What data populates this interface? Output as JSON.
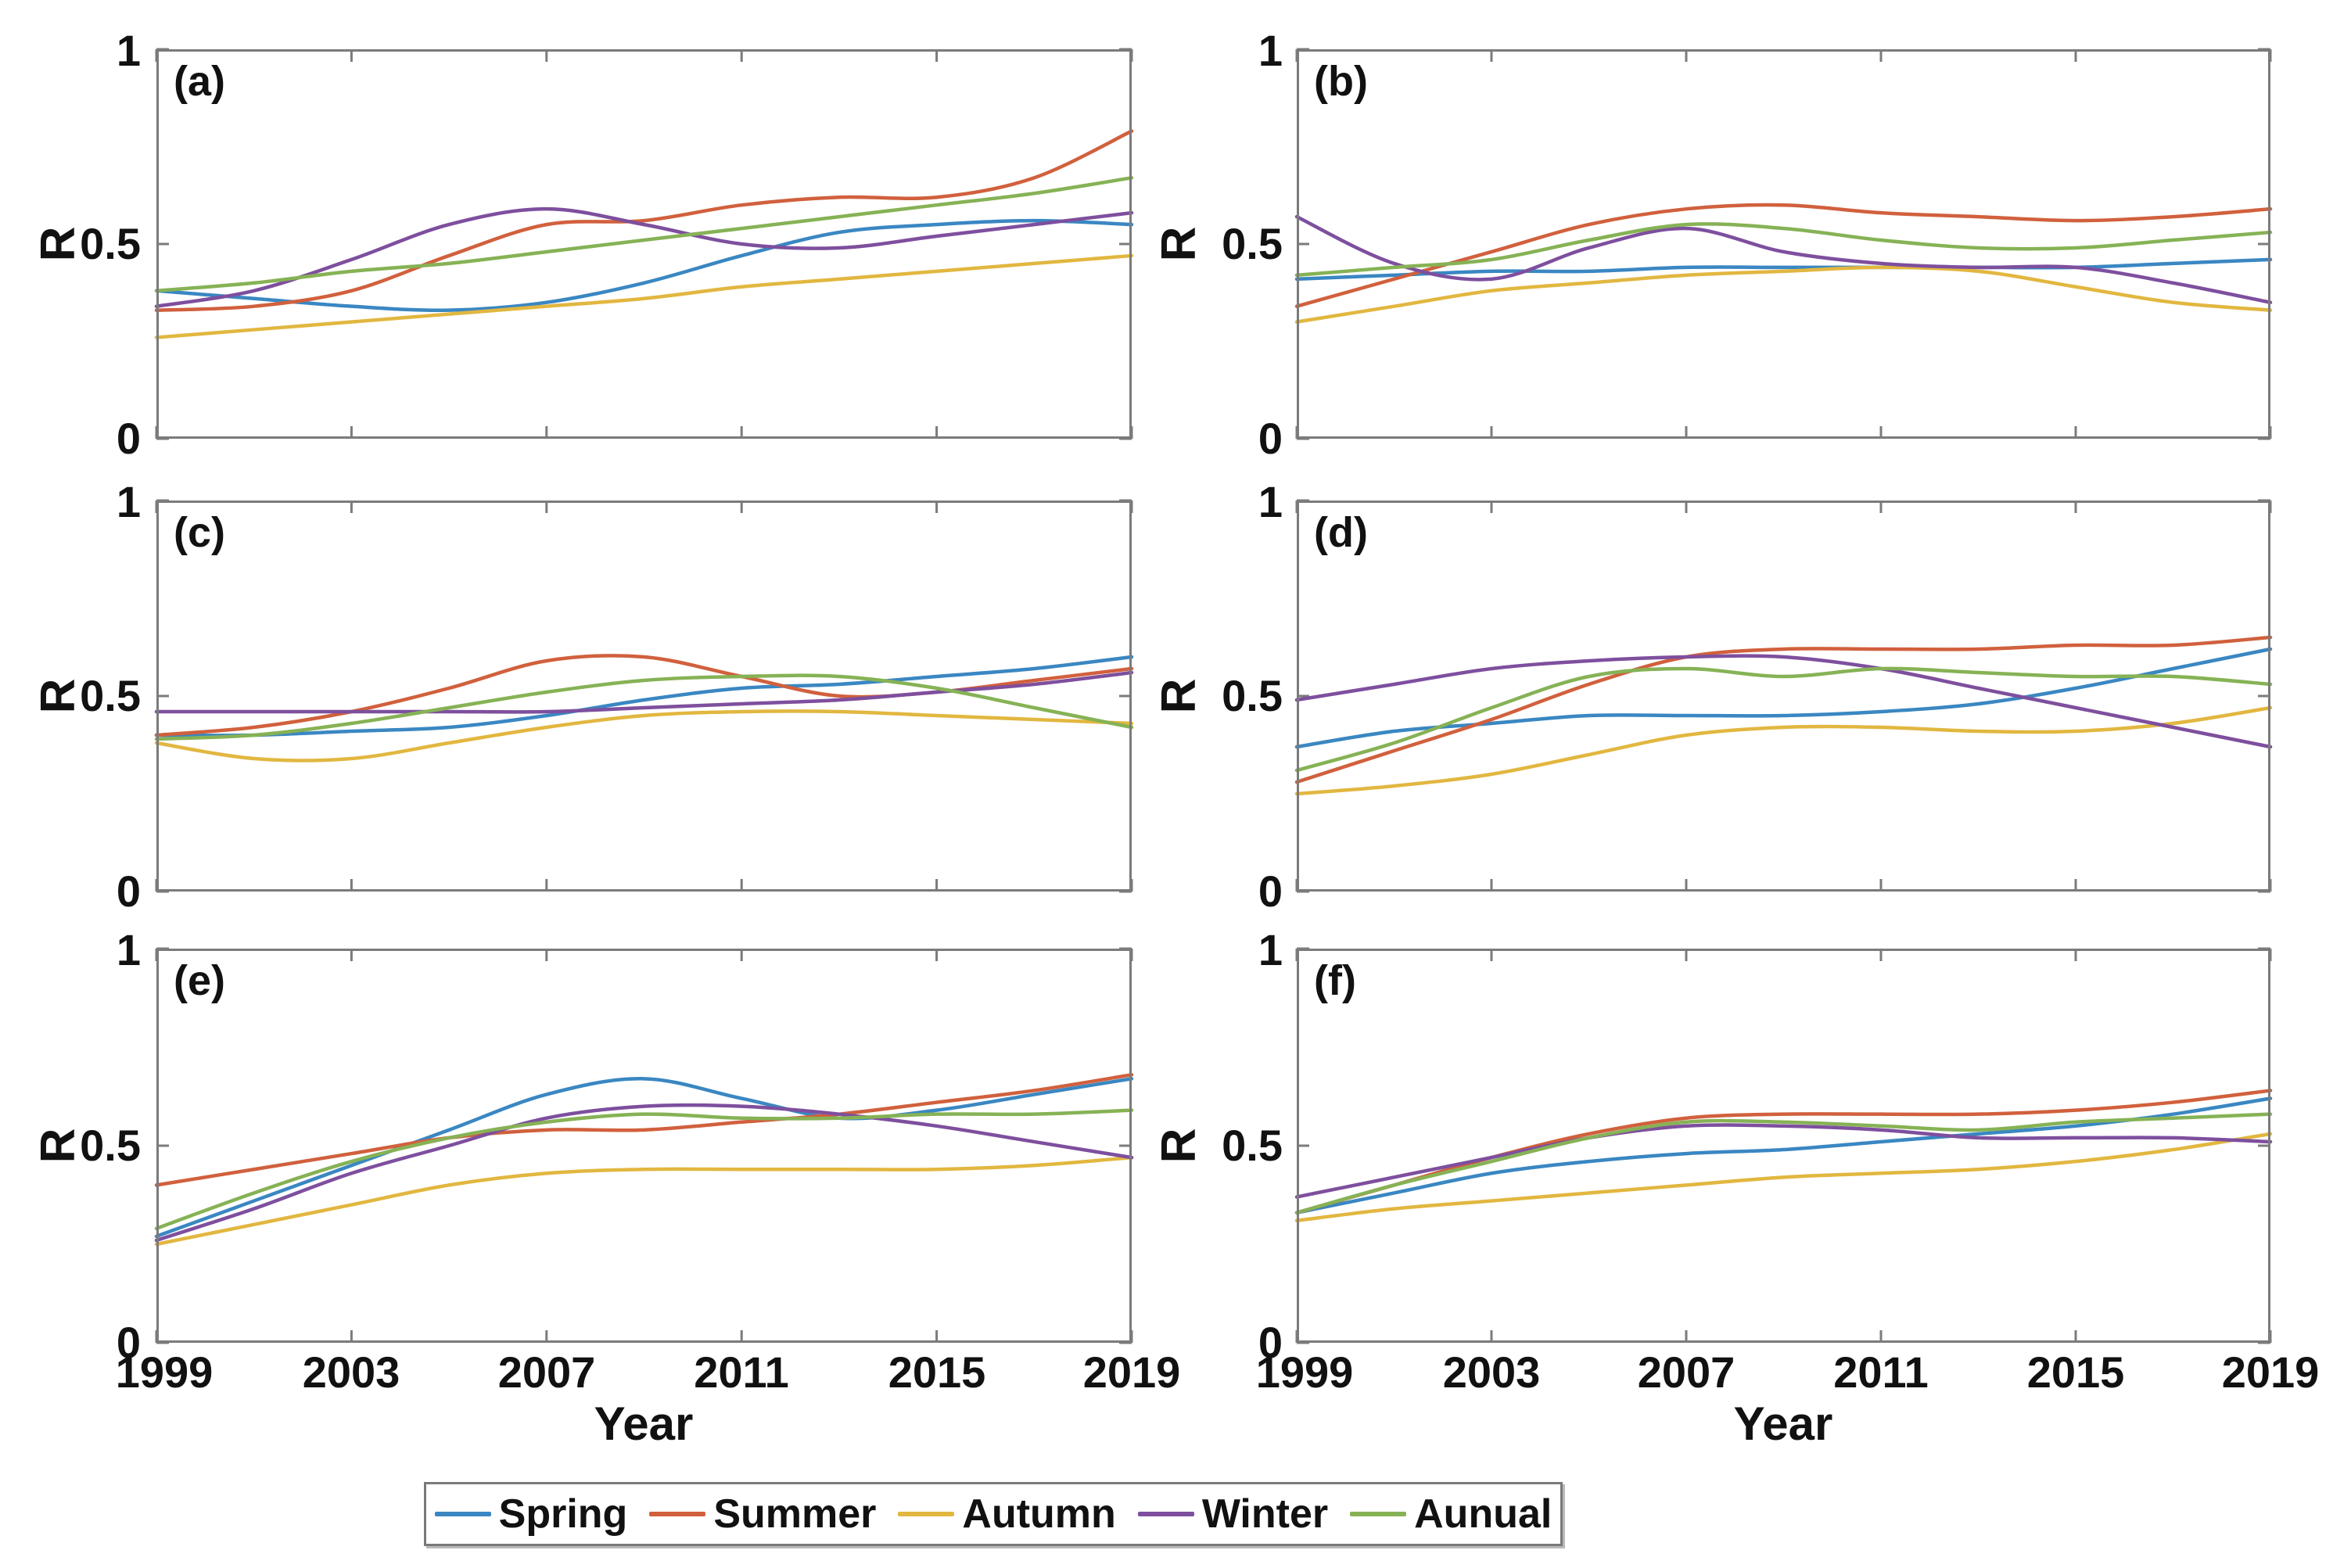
{
  "figure": {
    "ylabel": "R",
    "xlabel": "Year",
    "axes": {
      "x_ticks": [
        "1999",
        "2003",
        "2007",
        "2011",
        "2015",
        "2019"
      ],
      "y_ticks": [
        "1",
        "0.5",
        "0"
      ],
      "xlim": [
        1999,
        2019
      ],
      "ylim": [
        0,
        1
      ],
      "grid": "off",
      "box": "on",
      "axis_color": "#7b7b7b"
    }
  },
  "legend": {
    "position": "bottom-center",
    "items": [
      {
        "label": "Spring",
        "color": "#3a87c2"
      },
      {
        "label": "Summer",
        "color": "#d1603d"
      },
      {
        "label": "Autumn",
        "color": "#e2b740"
      },
      {
        "label": "Winter",
        "color": "#7e4f9e"
      },
      {
        "label": "Aunual",
        "color": "#86b255"
      }
    ]
  },
  "chart_data": [
    {
      "type": "line",
      "label": "(a)",
      "x": [
        1999,
        2001,
        2003,
        2005,
        2007,
        2009,
        2011,
        2013,
        2015,
        2017,
        2019
      ],
      "series": [
        {
          "name": "Spring",
          "color": "#3a87c2",
          "values": [
            0.38,
            0.36,
            0.34,
            0.33,
            0.35,
            0.4,
            0.47,
            0.53,
            0.55,
            0.56,
            0.55
          ]
        },
        {
          "name": "Summer",
          "color": "#d1603d",
          "values": [
            0.33,
            0.34,
            0.38,
            0.47,
            0.55,
            0.56,
            0.6,
            0.62,
            0.62,
            0.67,
            0.79
          ]
        },
        {
          "name": "Autumn",
          "color": "#e2b740",
          "values": [
            0.26,
            0.28,
            0.3,
            0.32,
            0.34,
            0.36,
            0.39,
            0.41,
            0.43,
            0.45,
            0.47
          ]
        },
        {
          "name": "Winter",
          "color": "#7e4f9e",
          "values": [
            0.34,
            0.38,
            0.46,
            0.55,
            0.59,
            0.55,
            0.5,
            0.49,
            0.52,
            0.55,
            0.58
          ]
        },
        {
          "name": "Aunual",
          "color": "#86b255",
          "values": [
            0.38,
            0.4,
            0.43,
            0.45,
            0.48,
            0.51,
            0.54,
            0.57,
            0.6,
            0.63,
            0.67
          ]
        }
      ]
    },
    {
      "type": "line",
      "label": "(b)",
      "x": [
        1999,
        2001,
        2003,
        2005,
        2007,
        2009,
        2011,
        2013,
        2015,
        2017,
        2019
      ],
      "series": [
        {
          "name": "Spring",
          "color": "#3a87c2",
          "values": [
            0.41,
            0.42,
            0.43,
            0.43,
            0.44,
            0.44,
            0.44,
            0.44,
            0.44,
            0.45,
            0.46
          ]
        },
        {
          "name": "Summer",
          "color": "#d1603d",
          "values": [
            0.34,
            0.41,
            0.48,
            0.55,
            0.59,
            0.6,
            0.58,
            0.57,
            0.56,
            0.57,
            0.59
          ]
        },
        {
          "name": "Autumn",
          "color": "#e2b740",
          "values": [
            0.3,
            0.34,
            0.38,
            0.4,
            0.42,
            0.43,
            0.44,
            0.43,
            0.39,
            0.35,
            0.33
          ]
        },
        {
          "name": "Winter",
          "color": "#7e4f9e",
          "values": [
            0.57,
            0.45,
            0.41,
            0.49,
            0.54,
            0.48,
            0.45,
            0.44,
            0.44,
            0.4,
            0.35
          ]
        },
        {
          "name": "Aunual",
          "color": "#86b255",
          "values": [
            0.42,
            0.44,
            0.46,
            0.51,
            0.55,
            0.54,
            0.51,
            0.49,
            0.49,
            0.51,
            0.53
          ]
        }
      ]
    },
    {
      "type": "line",
      "label": "(c)",
      "x": [
        1999,
        2001,
        2003,
        2005,
        2007,
        2009,
        2011,
        2013,
        2015,
        2017,
        2019
      ],
      "series": [
        {
          "name": "Spring",
          "color": "#3a87c2",
          "values": [
            0.4,
            0.4,
            0.41,
            0.42,
            0.45,
            0.49,
            0.52,
            0.53,
            0.55,
            0.57,
            0.6
          ]
        },
        {
          "name": "Summer",
          "color": "#d1603d",
          "values": [
            0.4,
            0.42,
            0.46,
            0.52,
            0.59,
            0.6,
            0.55,
            0.5,
            0.51,
            0.54,
            0.57
          ]
        },
        {
          "name": "Autumn",
          "color": "#e2b740",
          "values": [
            0.38,
            0.34,
            0.34,
            0.38,
            0.42,
            0.45,
            0.46,
            0.46,
            0.45,
            0.44,
            0.43
          ]
        },
        {
          "name": "Winter",
          "color": "#7e4f9e",
          "values": [
            0.46,
            0.46,
            0.46,
            0.46,
            0.46,
            0.47,
            0.48,
            0.49,
            0.51,
            0.53,
            0.56
          ]
        },
        {
          "name": "Aunual",
          "color": "#86b255",
          "values": [
            0.39,
            0.4,
            0.43,
            0.47,
            0.51,
            0.54,
            0.55,
            0.55,
            0.52,
            0.47,
            0.42
          ]
        }
      ]
    },
    {
      "type": "line",
      "label": "(d)",
      "x": [
        1999,
        2001,
        2003,
        2005,
        2007,
        2009,
        2011,
        2013,
        2015,
        2017,
        2019
      ],
      "series": [
        {
          "name": "Spring",
          "color": "#3a87c2",
          "values": [
            0.37,
            0.41,
            0.43,
            0.45,
            0.45,
            0.45,
            0.46,
            0.48,
            0.52,
            0.57,
            0.62
          ]
        },
        {
          "name": "Summer",
          "color": "#d1603d",
          "values": [
            0.28,
            0.36,
            0.44,
            0.53,
            0.6,
            0.62,
            0.62,
            0.62,
            0.63,
            0.63,
            0.65
          ]
        },
        {
          "name": "Autumn",
          "color": "#e2b740",
          "values": [
            0.25,
            0.27,
            0.3,
            0.35,
            0.4,
            0.42,
            0.42,
            0.41,
            0.41,
            0.43,
            0.47
          ]
        },
        {
          "name": "Winter",
          "color": "#7e4f9e",
          "values": [
            0.49,
            0.53,
            0.57,
            0.59,
            0.6,
            0.6,
            0.57,
            0.52,
            0.47,
            0.42,
            0.37
          ]
        },
        {
          "name": "Aunual",
          "color": "#86b255",
          "values": [
            0.31,
            0.38,
            0.47,
            0.55,
            0.57,
            0.55,
            0.57,
            0.56,
            0.55,
            0.55,
            0.53
          ]
        }
      ]
    },
    {
      "type": "line",
      "label": "(e)",
      "x": [
        1999,
        2001,
        2003,
        2005,
        2007,
        2009,
        2011,
        2013,
        2015,
        2017,
        2019
      ],
      "series": [
        {
          "name": "Spring",
          "color": "#3a87c2",
          "values": [
            0.27,
            0.36,
            0.45,
            0.54,
            0.63,
            0.67,
            0.62,
            0.57,
            0.59,
            0.63,
            0.67
          ]
        },
        {
          "name": "Summer",
          "color": "#d1603d",
          "values": [
            0.4,
            0.44,
            0.48,
            0.52,
            0.54,
            0.54,
            0.56,
            0.58,
            0.61,
            0.64,
            0.68
          ]
        },
        {
          "name": "Autumn",
          "color": "#e2b740",
          "values": [
            0.25,
            0.3,
            0.35,
            0.4,
            0.43,
            0.44,
            0.44,
            0.44,
            0.44,
            0.45,
            0.47
          ]
        },
        {
          "name": "Winter",
          "color": "#7e4f9e",
          "values": [
            0.26,
            0.34,
            0.43,
            0.5,
            0.57,
            0.6,
            0.6,
            0.58,
            0.55,
            0.51,
            0.47
          ]
        },
        {
          "name": "Aunual",
          "color": "#86b255",
          "values": [
            0.29,
            0.38,
            0.46,
            0.52,
            0.56,
            0.58,
            0.57,
            0.57,
            0.58,
            0.58,
            0.59
          ]
        }
      ]
    },
    {
      "type": "line",
      "label": "(f)",
      "x": [
        1999,
        2001,
        2003,
        2005,
        2007,
        2009,
        2011,
        2013,
        2015,
        2017,
        2019
      ],
      "series": [
        {
          "name": "Spring",
          "color": "#3a87c2",
          "values": [
            0.33,
            0.38,
            0.43,
            0.46,
            0.48,
            0.49,
            0.51,
            0.53,
            0.55,
            0.58,
            0.62
          ]
        },
        {
          "name": "Summer",
          "color": "#d1603d",
          "values": [
            0.33,
            0.4,
            0.47,
            0.53,
            0.57,
            0.58,
            0.58,
            0.58,
            0.59,
            0.61,
            0.64
          ]
        },
        {
          "name": "Autumn",
          "color": "#e2b740",
          "values": [
            0.31,
            0.34,
            0.36,
            0.38,
            0.4,
            0.42,
            0.43,
            0.44,
            0.46,
            0.49,
            0.53
          ]
        },
        {
          "name": "Winter",
          "color": "#7e4f9e",
          "values": [
            0.37,
            0.42,
            0.47,
            0.52,
            0.55,
            0.55,
            0.54,
            0.52,
            0.52,
            0.52,
            0.51
          ]
        },
        {
          "name": "Aunual",
          "color": "#86b255",
          "values": [
            0.33,
            0.4,
            0.46,
            0.52,
            0.56,
            0.56,
            0.55,
            0.54,
            0.56,
            0.57,
            0.58
          ]
        }
      ]
    }
  ]
}
